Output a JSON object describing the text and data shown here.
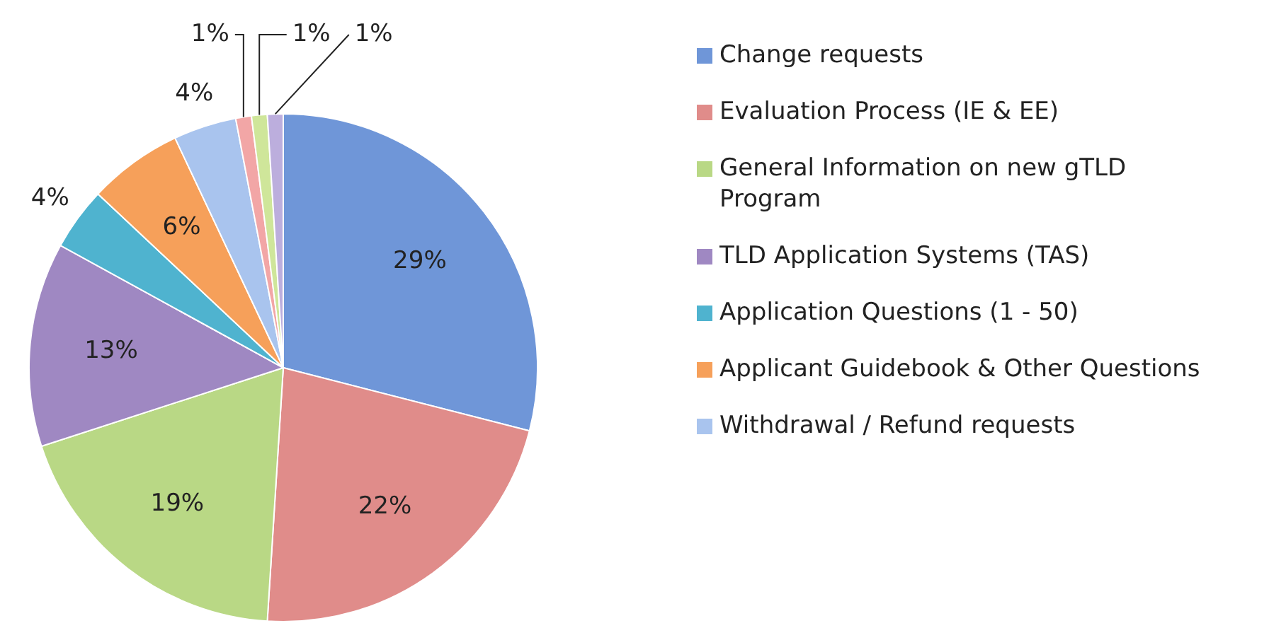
{
  "chart_data": {
    "type": "pie",
    "categories": [
      "Change requests",
      "Evaluation Process (IE & EE)",
      "General Information on new gTLD Program",
      "TLD Application Systems (TAS)",
      "Application Questions (1 - 50)",
      "Applicant Guidebook & Other Questions",
      "Withdrawal / Refund requests",
      null,
      null,
      null
    ],
    "values": [
      29,
      22,
      19,
      13,
      4,
      6,
      4,
      1,
      1,
      1
    ],
    "colors": [
      "#6f96d8",
      "#e08c8a",
      "#b9d885",
      "#9f88c2",
      "#4fb3cf",
      "#f6a05a",
      "#a9c4ee",
      "#f2a6a6",
      "#cfe69a",
      "#bcaedd"
    ],
    "value_labels": [
      "29%",
      "22%",
      "19%",
      "13%",
      "4%",
      "6%",
      "4%",
      "1%",
      "1%",
      "1%"
    ],
    "legend": "right"
  }
}
